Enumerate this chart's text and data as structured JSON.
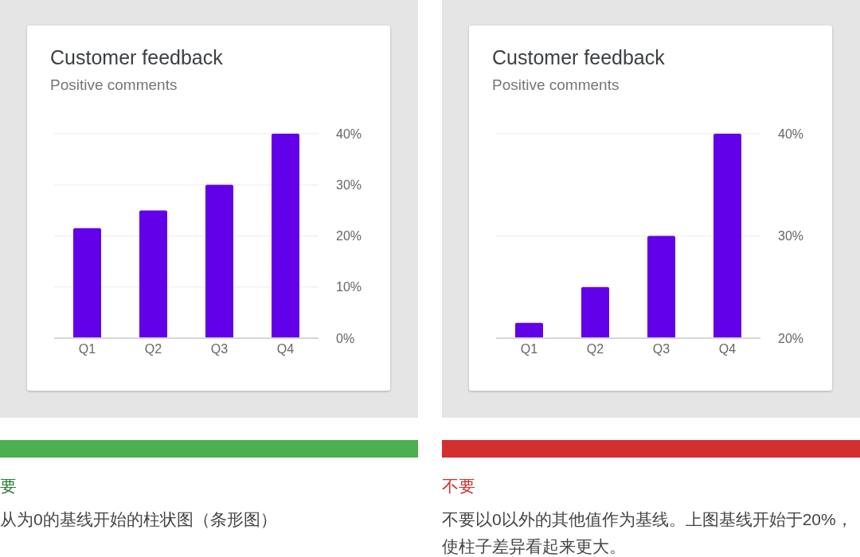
{
  "chart_data": [
    {
      "type": "bar",
      "title": "Customer feedback",
      "subtitle": "Positive comments",
      "categories": [
        "Q1",
        "Q2",
        "Q3",
        "Q4"
      ],
      "values": [
        21.5,
        25,
        30,
        40
      ],
      "color": "#6200ea",
      "ylim": [
        0,
        40
      ],
      "yticks": [
        {
          "value": 0,
          "label": "0%"
        },
        {
          "value": 10,
          "label": "10%"
        },
        {
          "value": 20,
          "label": "20%"
        },
        {
          "value": 30,
          "label": "30%"
        },
        {
          "value": 40,
          "label": "40%"
        }
      ],
      "grid": "y",
      "annotations": [
        "要",
        "从为0的基线开始的柱状图（条形图）"
      ]
    },
    {
      "type": "bar",
      "title": "Customer feedback",
      "subtitle": "Positive comments",
      "categories": [
        "Q1",
        "Q2",
        "Q3",
        "Q4"
      ],
      "values": [
        21.5,
        25,
        30,
        40
      ],
      "color": "#6200ea",
      "ylim": [
        20,
        40
      ],
      "yticks": [
        {
          "value": 20,
          "label": "20%"
        },
        {
          "value": 30,
          "label": "30%"
        },
        {
          "value": 40,
          "label": "40%"
        }
      ],
      "grid": "y",
      "annotations": [
        "不要",
        "不要以0以外的其他值作为基线。上图基线开始于20%，使柱子差异看起来更大。"
      ]
    }
  ]
}
